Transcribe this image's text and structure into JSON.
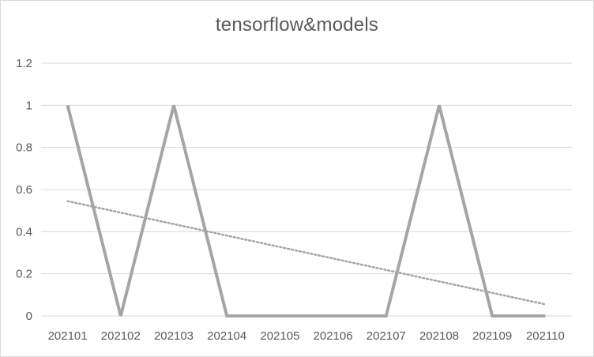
{
  "chart_data": {
    "type": "line",
    "title": "tensorflow&models",
    "xlabel": "",
    "ylabel": "",
    "categories": [
      "202101",
      "202102",
      "202103",
      "202104",
      "202105",
      "202106",
      "202107",
      "202108",
      "202109",
      "202110"
    ],
    "series": [
      {
        "values": [
          1,
          0,
          1,
          0,
          0,
          0,
          0,
          1,
          0,
          0
        ],
        "color": "#a5a5a5"
      }
    ],
    "trendline": {
      "type": "linear",
      "start": 0.545,
      "end": 0.055,
      "color": "#a5a5a5",
      "style": "dotted"
    },
    "ylim": [
      0,
      1.2
    ],
    "yticks": [
      "0",
      "0.2",
      "0.4",
      "0.6",
      "0.8",
      "1",
      "1.2"
    ],
    "grid": true,
    "legend": "none"
  }
}
